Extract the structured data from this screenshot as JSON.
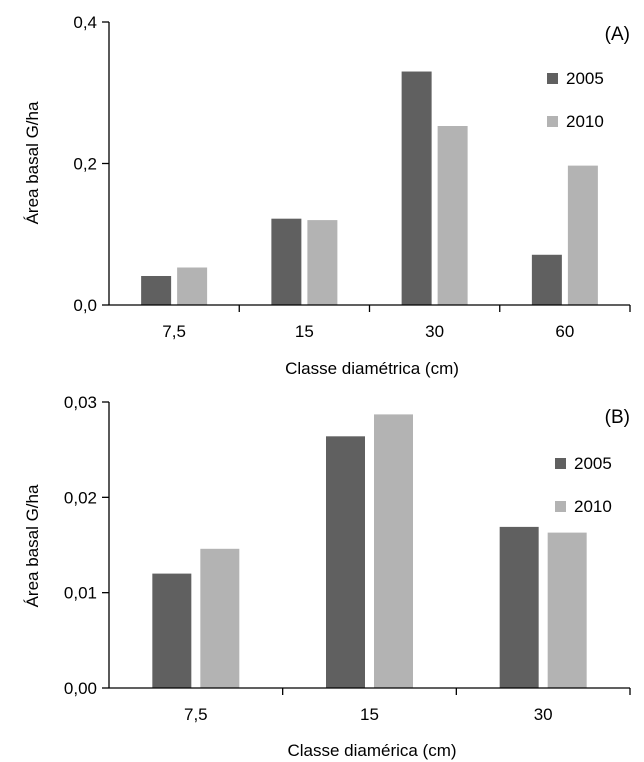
{
  "colors": {
    "series_2005": "#606060",
    "series_2010": "#b3b3b3"
  },
  "chart_data": [
    {
      "type": "bar",
      "panel_label": "(A)",
      "categories": [
        "7,5",
        "15",
        "30",
        "60"
      ],
      "series": [
        {
          "name": "2005",
          "values": [
            0.041,
            0.122,
            0.33,
            0.071
          ]
        },
        {
          "name": "2010",
          "values": [
            0.053,
            0.12,
            0.253,
            0.197
          ]
        }
      ],
      "ylim": [
        0,
        0.4
      ],
      "yticks": [
        "0,0",
        "0,2",
        "0,4"
      ],
      "ytick_values": [
        0,
        0.2,
        0.4
      ],
      "xlabel": "Classe diamétrica (cm)",
      "ylabel": "Área basal G/ha",
      "legend": "right",
      "grid": false
    },
    {
      "type": "bar",
      "panel_label": "(B)",
      "categories": [
        "7,5",
        "15",
        "30"
      ],
      "series": [
        {
          "name": "2005",
          "values": [
            0.012,
            0.0264,
            0.0169
          ]
        },
        {
          "name": "2010",
          "values": [
            0.0146,
            0.0287,
            0.0163
          ]
        }
      ],
      "ylim": [
        0,
        0.03
      ],
      "yticks": [
        "0,00",
        "0,01",
        "0,02",
        "0,03"
      ],
      "ytick_values": [
        0,
        0.01,
        0.02,
        0.03
      ],
      "xlabel": "Classe diamérica (cm)",
      "ylabel": "Área basal G/ha",
      "legend": "right",
      "grid": false
    }
  ]
}
